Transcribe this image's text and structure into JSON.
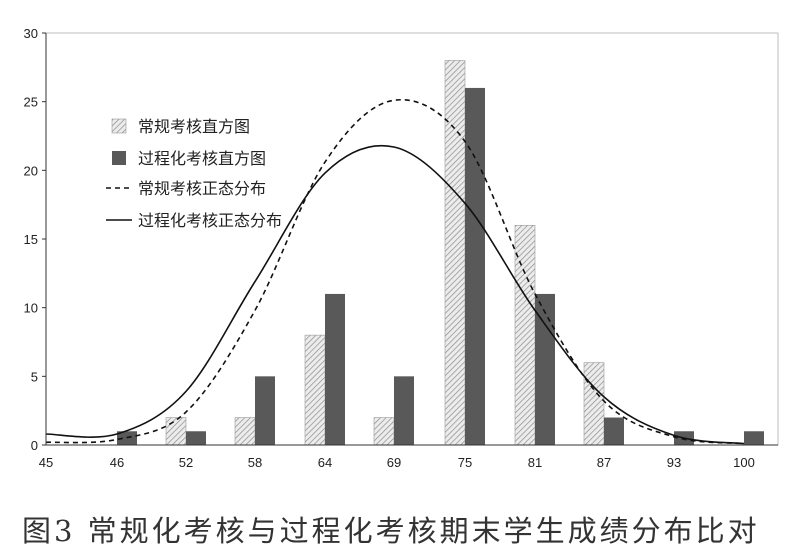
{
  "chart_data": {
    "type": "bar",
    "categories": [
      "45",
      "46",
      "52",
      "58",
      "64",
      "69",
      "75",
      "81",
      "87",
      "93",
      "100"
    ],
    "series": [
      {
        "name": "常规考核直方图",
        "kind": "bar",
        "pattern": "hatched",
        "values": [
          0,
          0,
          2,
          2,
          8,
          2,
          28,
          16,
          6,
          0,
          0
        ]
      },
      {
        "name": "过程化考核直方图",
        "kind": "bar",
        "color": "#595959",
        "values": [
          0,
          1,
          1,
          5,
          11,
          5,
          26,
          11,
          2,
          1,
          1
        ]
      },
      {
        "name": "常规考核正态分布",
        "kind": "line",
        "style": "dashed",
        "values": [
          0.2,
          0.4,
          2.4,
          9.8,
          20.6,
          25.1,
          22.1,
          11.0,
          3.2,
          0.6,
          0.1
        ]
      },
      {
        "name": "过程化考核正态分布",
        "kind": "line",
        "style": "solid",
        "values": [
          0.8,
          0.8,
          3.9,
          11.9,
          19.8,
          21.7,
          17.6,
          9.8,
          3.5,
          0.7,
          0.1
        ]
      }
    ],
    "yticks": [
      "0",
      "5",
      "10",
      "15",
      "20",
      "25",
      "30"
    ],
    "ylim": [
      0,
      30
    ],
    "grid": false,
    "legend_position": "top-left"
  },
  "caption": "图3   常规化考核与过程化考核期末学生成绩分布比对"
}
